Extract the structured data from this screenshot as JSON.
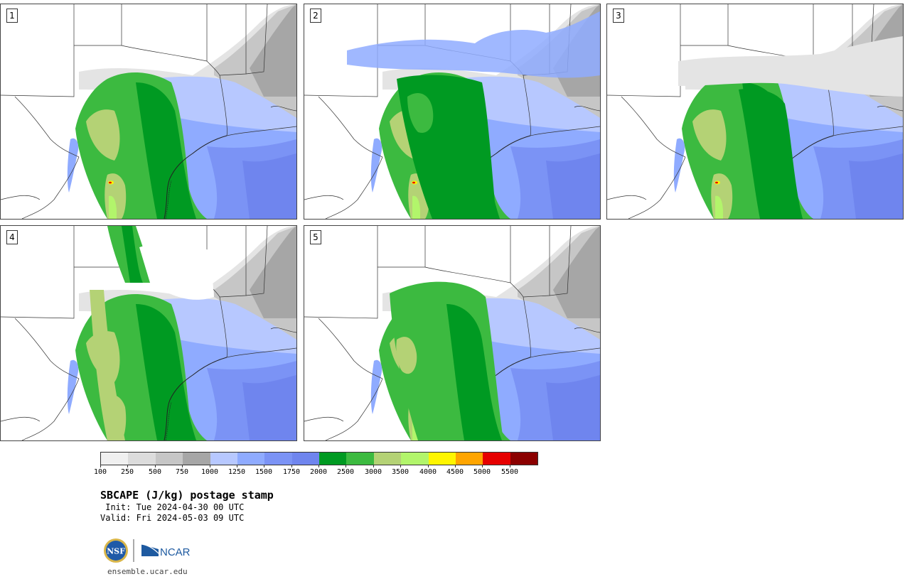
{
  "panels": [
    {
      "number": "1"
    },
    {
      "number": "2"
    },
    {
      "number": "3"
    },
    {
      "number": "4"
    },
    {
      "number": "5"
    }
  ],
  "legend": {
    "ticks": [
      "100",
      "250",
      "500",
      "750",
      "1000",
      "1250",
      "1500",
      "1750",
      "2000",
      "2500",
      "3000",
      "3500",
      "4000",
      "4500",
      "5000",
      "5500"
    ],
    "colors": [
      "#f0f0f0",
      "#dcdcdc",
      "#c6c6c6",
      "#a6a6a6",
      "#b7c8ff",
      "#8fabff",
      "#7b93f5",
      "#6f85ee",
      "#009a22",
      "#3cba40",
      "#b4d275",
      "#b2f56b",
      "#fff500",
      "#ffa500",
      "#e60000",
      "#8b0000"
    ]
  },
  "map_colors": {
    "cape_grey_light": "#e4e4e4",
    "cape_grey": "#c6c6c6",
    "cape_grey_dark": "#a6a6a6",
    "cape_blue_light": "#b7c8ff",
    "cape_blue": "#8fabff",
    "cape_blue_mid": "#7b93f5",
    "cape_blue_dark": "#6f85ee",
    "cape_green_dark": "#009a22",
    "cape_green": "#3cba40",
    "cape_green_olive": "#b4d275",
    "cape_green_lime": "#b2f56b",
    "cape_yellow": "#fff500",
    "cape_red": "#e60000"
  },
  "title": "SBCAPE (J/kg) postage stamp",
  "init": " Init: Tue 2024-04-30 00 UTC",
  "valid": "Valid: Fri 2024-05-03 09 UTC",
  "logos": {
    "nsf": "NSF",
    "ncar": "NCAR"
  },
  "url": "ensemble.ucar.edu"
}
